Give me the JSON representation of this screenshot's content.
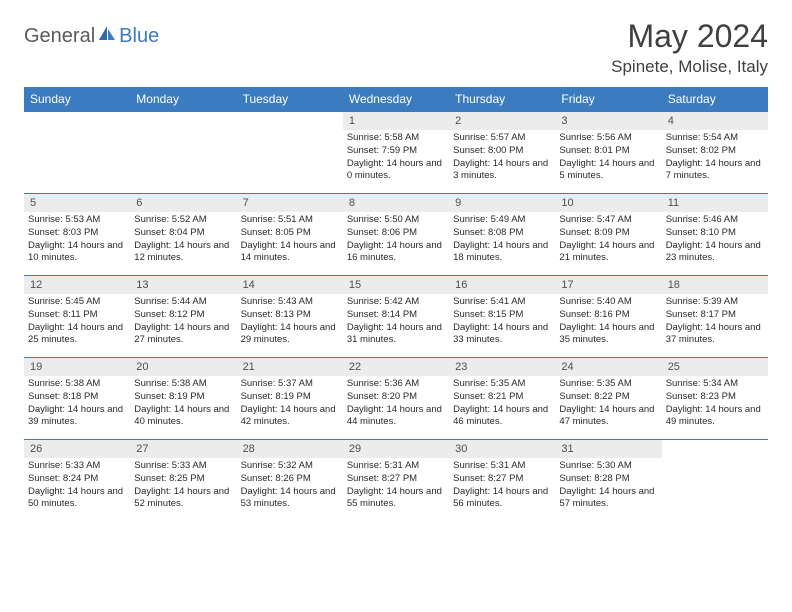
{
  "logo": {
    "text1": "General",
    "text2": "Blue"
  },
  "title": "May 2024",
  "location": "Spinete, Molise, Italy",
  "colors": {
    "header_bg": "#3b7bbf",
    "header_text": "#ffffff",
    "daynum_bg": "#ececec",
    "logo_accent": "#3b7bbf",
    "text": "#404040"
  },
  "day_headers": [
    "Sunday",
    "Monday",
    "Tuesday",
    "Wednesday",
    "Thursday",
    "Friday",
    "Saturday"
  ],
  "weeks": [
    [
      null,
      null,
      null,
      {
        "n": "1",
        "sr": "5:58 AM",
        "ss": "7:59 PM",
        "dl": "14 hours and 0 minutes."
      },
      {
        "n": "2",
        "sr": "5:57 AM",
        "ss": "8:00 PM",
        "dl": "14 hours and 3 minutes."
      },
      {
        "n": "3",
        "sr": "5:56 AM",
        "ss": "8:01 PM",
        "dl": "14 hours and 5 minutes."
      },
      {
        "n": "4",
        "sr": "5:54 AM",
        "ss": "8:02 PM",
        "dl": "14 hours and 7 minutes."
      }
    ],
    [
      {
        "n": "5",
        "sr": "5:53 AM",
        "ss": "8:03 PM",
        "dl": "14 hours and 10 minutes."
      },
      {
        "n": "6",
        "sr": "5:52 AM",
        "ss": "8:04 PM",
        "dl": "14 hours and 12 minutes."
      },
      {
        "n": "7",
        "sr": "5:51 AM",
        "ss": "8:05 PM",
        "dl": "14 hours and 14 minutes."
      },
      {
        "n": "8",
        "sr": "5:50 AM",
        "ss": "8:06 PM",
        "dl": "14 hours and 16 minutes."
      },
      {
        "n": "9",
        "sr": "5:49 AM",
        "ss": "8:08 PM",
        "dl": "14 hours and 18 minutes."
      },
      {
        "n": "10",
        "sr": "5:47 AM",
        "ss": "8:09 PM",
        "dl": "14 hours and 21 minutes."
      },
      {
        "n": "11",
        "sr": "5:46 AM",
        "ss": "8:10 PM",
        "dl": "14 hours and 23 minutes."
      }
    ],
    [
      {
        "n": "12",
        "sr": "5:45 AM",
        "ss": "8:11 PM",
        "dl": "14 hours and 25 minutes."
      },
      {
        "n": "13",
        "sr": "5:44 AM",
        "ss": "8:12 PM",
        "dl": "14 hours and 27 minutes."
      },
      {
        "n": "14",
        "sr": "5:43 AM",
        "ss": "8:13 PM",
        "dl": "14 hours and 29 minutes."
      },
      {
        "n": "15",
        "sr": "5:42 AM",
        "ss": "8:14 PM",
        "dl": "14 hours and 31 minutes."
      },
      {
        "n": "16",
        "sr": "5:41 AM",
        "ss": "8:15 PM",
        "dl": "14 hours and 33 minutes."
      },
      {
        "n": "17",
        "sr": "5:40 AM",
        "ss": "8:16 PM",
        "dl": "14 hours and 35 minutes."
      },
      {
        "n": "18",
        "sr": "5:39 AM",
        "ss": "8:17 PM",
        "dl": "14 hours and 37 minutes."
      }
    ],
    [
      {
        "n": "19",
        "sr": "5:38 AM",
        "ss": "8:18 PM",
        "dl": "14 hours and 39 minutes."
      },
      {
        "n": "20",
        "sr": "5:38 AM",
        "ss": "8:19 PM",
        "dl": "14 hours and 40 minutes."
      },
      {
        "n": "21",
        "sr": "5:37 AM",
        "ss": "8:19 PM",
        "dl": "14 hours and 42 minutes."
      },
      {
        "n": "22",
        "sr": "5:36 AM",
        "ss": "8:20 PM",
        "dl": "14 hours and 44 minutes."
      },
      {
        "n": "23",
        "sr": "5:35 AM",
        "ss": "8:21 PM",
        "dl": "14 hours and 46 minutes."
      },
      {
        "n": "24",
        "sr": "5:35 AM",
        "ss": "8:22 PM",
        "dl": "14 hours and 47 minutes."
      },
      {
        "n": "25",
        "sr": "5:34 AM",
        "ss": "8:23 PM",
        "dl": "14 hours and 49 minutes."
      }
    ],
    [
      {
        "n": "26",
        "sr": "5:33 AM",
        "ss": "8:24 PM",
        "dl": "14 hours and 50 minutes."
      },
      {
        "n": "27",
        "sr": "5:33 AM",
        "ss": "8:25 PM",
        "dl": "14 hours and 52 minutes."
      },
      {
        "n": "28",
        "sr": "5:32 AM",
        "ss": "8:26 PM",
        "dl": "14 hours and 53 minutes."
      },
      {
        "n": "29",
        "sr": "5:31 AM",
        "ss": "8:27 PM",
        "dl": "14 hours and 55 minutes."
      },
      {
        "n": "30",
        "sr": "5:31 AM",
        "ss": "8:27 PM",
        "dl": "14 hours and 56 minutes."
      },
      {
        "n": "31",
        "sr": "5:30 AM",
        "ss": "8:28 PM",
        "dl": "14 hours and 57 minutes."
      },
      null
    ]
  ],
  "labels": {
    "sunrise": "Sunrise:",
    "sunset": "Sunset:",
    "daylight": "Daylight:"
  }
}
